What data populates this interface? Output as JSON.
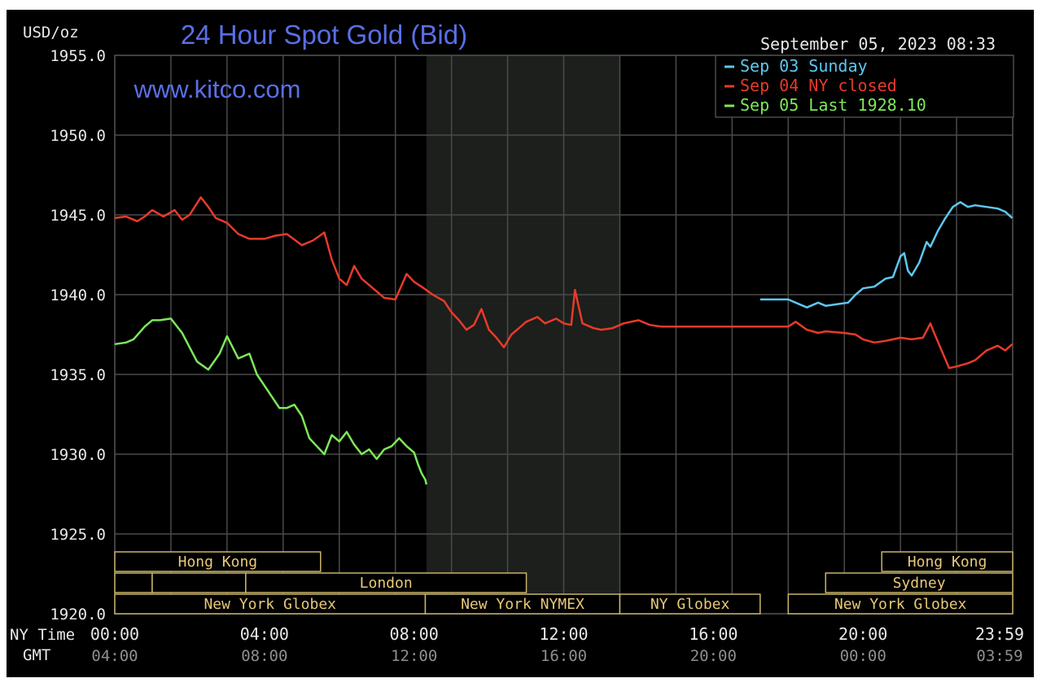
{
  "colors": {
    "background": "#000000",
    "grid": "#4a4a4a",
    "text": "#e8e8e8",
    "gmt_text": "#8f8f8f",
    "title": "#5a6fe6",
    "session_box": "#c8b46a",
    "session_text": "#e8c978",
    "shade": "#1c1f1c"
  },
  "chart_data": {
    "type": "line",
    "title": "24 Hour Spot Gold (Bid)",
    "watermark": "www.kitco.com",
    "timestamp": "September 05, 2023 08:33",
    "ylabel": "USD/oz",
    "ylim": [
      1920,
      1955
    ],
    "yticks": [
      "1955.0",
      "1950.0",
      "1945.0",
      "1940.0",
      "1935.0",
      "1930.0",
      "1925.0",
      "1920.0"
    ],
    "xlim_hours": [
      0,
      24
    ],
    "x_row_labels": {
      "ny": "NY Time",
      "gmt": "GMT"
    },
    "x_ny_ticks": [
      "00:00",
      "04:00",
      "08:00",
      "12:00",
      "16:00",
      "20:00",
      "23:59"
    ],
    "x_gmt_ticks": [
      "04:00",
      "08:00",
      "12:00",
      "16:00",
      "20:00",
      "00:00",
      "03:59"
    ],
    "grid": true,
    "legend_position": "top-right",
    "shaded_period_hours": [
      8.33,
      13.5
    ],
    "sessions": [
      {
        "label": "Hong Kong",
        "row": 0,
        "start": 0,
        "end": 5.5
      },
      {
        "label": "",
        "row": 1,
        "start": 0,
        "end": 1
      },
      {
        "label": "",
        "row": 1,
        "start": 1,
        "end": 3.5
      },
      {
        "label": "London",
        "row": 1,
        "start": 3.5,
        "end": 11
      },
      {
        "label": "New York Globex",
        "row": 2,
        "start": 0,
        "end": 8.3
      },
      {
        "label": "New York NYMEX",
        "row": 2,
        "start": 8.3,
        "end": 13.5
      },
      {
        "label": "NY Globex",
        "row": 2,
        "start": 13.5,
        "end": 17.25
      },
      {
        "label": "Hong Kong",
        "row": 0,
        "start": 20.5,
        "end": 24
      },
      {
        "label": "Sydney",
        "row": 1,
        "start": 19,
        "end": 24
      },
      {
        "label": "New York Globex",
        "row": 2,
        "start": 18,
        "end": 24
      }
    ],
    "series": [
      {
        "name": "Sep 03 Sunday",
        "color": "#5cc8f0",
        "x": [
          17.25,
          17.6,
          18.0,
          18.3,
          18.5,
          18.8,
          19.0,
          19.3,
          19.6,
          19.8,
          20.0,
          20.3,
          20.6,
          20.8,
          21.0,
          21.1,
          21.2,
          21.3,
          21.5,
          21.7,
          21.8,
          22.0,
          22.2,
          22.4,
          22.6,
          22.8,
          23.0,
          23.3,
          23.6,
          23.8,
          23.99
        ],
        "values": [
          1939.7,
          1939.7,
          1939.7,
          1939.4,
          1939.2,
          1939.5,
          1939.3,
          1939.4,
          1939.5,
          1940.0,
          1940.4,
          1940.5,
          1941.0,
          1941.1,
          1942.4,
          1942.6,
          1941.5,
          1941.2,
          1942.0,
          1943.3,
          1943.0,
          1944.0,
          1944.8,
          1945.5,
          1945.8,
          1945.5,
          1945.6,
          1945.5,
          1945.4,
          1945.2,
          1944.8
        ]
      },
      {
        "name": "Sep 04 NY closed",
        "color": "#e83a2a",
        "x": [
          0,
          0.3,
          0.6,
          0.8,
          1.0,
          1.3,
          1.6,
          1.8,
          2.0,
          2.3,
          2.5,
          2.7,
          3.0,
          3.3,
          3.6,
          4.0,
          4.3,
          4.6,
          5.0,
          5.3,
          5.6,
          5.8,
          6.0,
          6.2,
          6.4,
          6.6,
          6.8,
          7.0,
          7.2,
          7.5,
          7.8,
          8.0,
          8.2,
          8.5,
          8.8,
          9.0,
          9.2,
          9.4,
          9.6,
          9.8,
          10.0,
          10.2,
          10.4,
          10.6,
          10.8,
          11.0,
          11.3,
          11.5,
          11.8,
          12.0,
          12.2,
          12.3,
          12.5,
          12.8,
          13.0,
          13.3,
          13.6,
          14.0,
          14.3,
          14.6,
          15.0,
          15.5,
          16.0,
          16.5,
          17.0,
          17.5,
          18.0,
          18.2,
          18.5,
          18.8,
          19.0,
          19.5,
          19.8,
          20.0,
          20.3,
          20.6,
          20.8,
          21.0,
          21.3,
          21.6,
          21.8,
          21.9,
          22.1,
          22.3,
          22.5,
          22.8,
          23.0,
          23.3,
          23.6,
          23.8,
          23.99
        ],
        "values": [
          1944.8,
          1944.9,
          1944.6,
          1944.9,
          1945.3,
          1944.9,
          1945.3,
          1944.7,
          1945.0,
          1946.1,
          1945.5,
          1944.8,
          1944.5,
          1943.8,
          1943.5,
          1943.5,
          1943.7,
          1943.8,
          1943.1,
          1943.4,
          1943.9,
          1942.2,
          1941.0,
          1940.6,
          1941.8,
          1941.0,
          1940.6,
          1940.2,
          1939.8,
          1939.7,
          1941.3,
          1940.8,
          1940.5,
          1940.0,
          1939.6,
          1938.9,
          1938.4,
          1937.8,
          1938.1,
          1939.1,
          1937.8,
          1937.3,
          1936.7,
          1937.5,
          1937.9,
          1938.3,
          1938.6,
          1938.2,
          1938.5,
          1938.2,
          1938.1,
          1940.3,
          1938.2,
          1937.9,
          1937.8,
          1937.9,
          1938.2,
          1938.4,
          1938.1,
          1938.0,
          1938.0,
          1938.0,
          1938.0,
          1938.0,
          1938.0,
          1938.0,
          1938.0,
          1938.3,
          1937.8,
          1937.6,
          1937.7,
          1937.6,
          1937.5,
          1937.2,
          1937.0,
          1937.1,
          1937.2,
          1937.3,
          1937.2,
          1937.3,
          1938.2,
          1937.6,
          1936.5,
          1935.4,
          1935.5,
          1935.7,
          1935.9,
          1936.5,
          1936.8,
          1936.5,
          1936.9
        ]
      },
      {
        "name": "Sep 05 Last 1928.10",
        "color": "#7ce85a",
        "x": [
          0,
          0.3,
          0.5,
          0.8,
          1.0,
          1.2,
          1.5,
          1.8,
          2.0,
          2.2,
          2.5,
          2.8,
          3.0,
          3.3,
          3.6,
          3.8,
          4.0,
          4.2,
          4.4,
          4.6,
          4.8,
          5.0,
          5.2,
          5.4,
          5.6,
          5.8,
          6.0,
          6.2,
          6.4,
          6.6,
          6.8,
          7.0,
          7.2,
          7.4,
          7.6,
          7.8,
          8.0,
          8.1,
          8.2,
          8.3,
          8.33
        ],
        "values": [
          1936.9,
          1937.0,
          1937.2,
          1938.0,
          1938.4,
          1938.4,
          1938.5,
          1937.6,
          1936.7,
          1935.8,
          1935.3,
          1936.3,
          1937.4,
          1936.0,
          1936.3,
          1935.0,
          1934.3,
          1933.6,
          1932.9,
          1932.9,
          1933.1,
          1932.4,
          1931.0,
          1930.5,
          1930.0,
          1931.2,
          1930.8,
          1931.4,
          1930.6,
          1930.0,
          1930.3,
          1929.7,
          1930.3,
          1930.5,
          1931.0,
          1930.5,
          1930.1,
          1929.4,
          1928.8,
          1928.4,
          1928.1
        ]
      }
    ]
  }
}
